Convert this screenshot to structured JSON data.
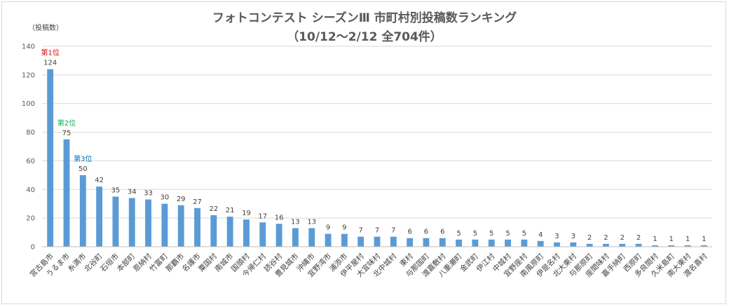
{
  "chart_data": {
    "type": "bar",
    "title": "フォトコンテスト シーズンⅢ 市町村別投稿数ランキング",
    "subtitle": "（10/12～2/12 全704件）",
    "ylabel": "（投稿数）",
    "xlabel": "",
    "ylim": [
      0,
      140
    ],
    "yticks": [
      0,
      20,
      40,
      60,
      80,
      100,
      120,
      140
    ],
    "grid": true,
    "bar_color": "#5b9bd5",
    "categories": [
      "宮古島市",
      "うるま市",
      "糸満市",
      "北谷町",
      "石垣市",
      "本部町",
      "恩納村",
      "竹富町",
      "那覇市",
      "名護市",
      "粟国村",
      "南城市",
      "国頭村",
      "今帰仁村",
      "読谷村",
      "豊見城市",
      "沖縄市",
      "宜野湾市",
      "浦添市",
      "伊平屋村",
      "大宜味村",
      "北中城村",
      "東村",
      "与那国町",
      "渡嘉敷村",
      "八重瀬町",
      "金武町",
      "伊江村",
      "中城村",
      "宜野座村",
      "南風原町",
      "伊是名村",
      "北大東村",
      "与那原町",
      "座間味村",
      "嘉手納町",
      "西原町",
      "多良間村",
      "久米島町",
      "南大東村",
      "渡名喜村"
    ],
    "values": [
      124,
      75,
      50,
      42,
      35,
      34,
      33,
      30,
      29,
      27,
      22,
      21,
      19,
      17,
      16,
      13,
      13,
      9,
      9,
      7,
      7,
      7,
      6,
      6,
      6,
      5,
      5,
      5,
      5,
      5,
      4,
      3,
      3,
      2,
      2,
      2,
      2,
      1,
      1,
      1,
      1
    ],
    "annotations": [
      {
        "label": "第1位",
        "index": 0,
        "color": "#e00000"
      },
      {
        "label": "第2位",
        "index": 1,
        "color": "#00b050"
      },
      {
        "label": "第3位",
        "index": 2,
        "color": "#0070c0"
      }
    ]
  }
}
